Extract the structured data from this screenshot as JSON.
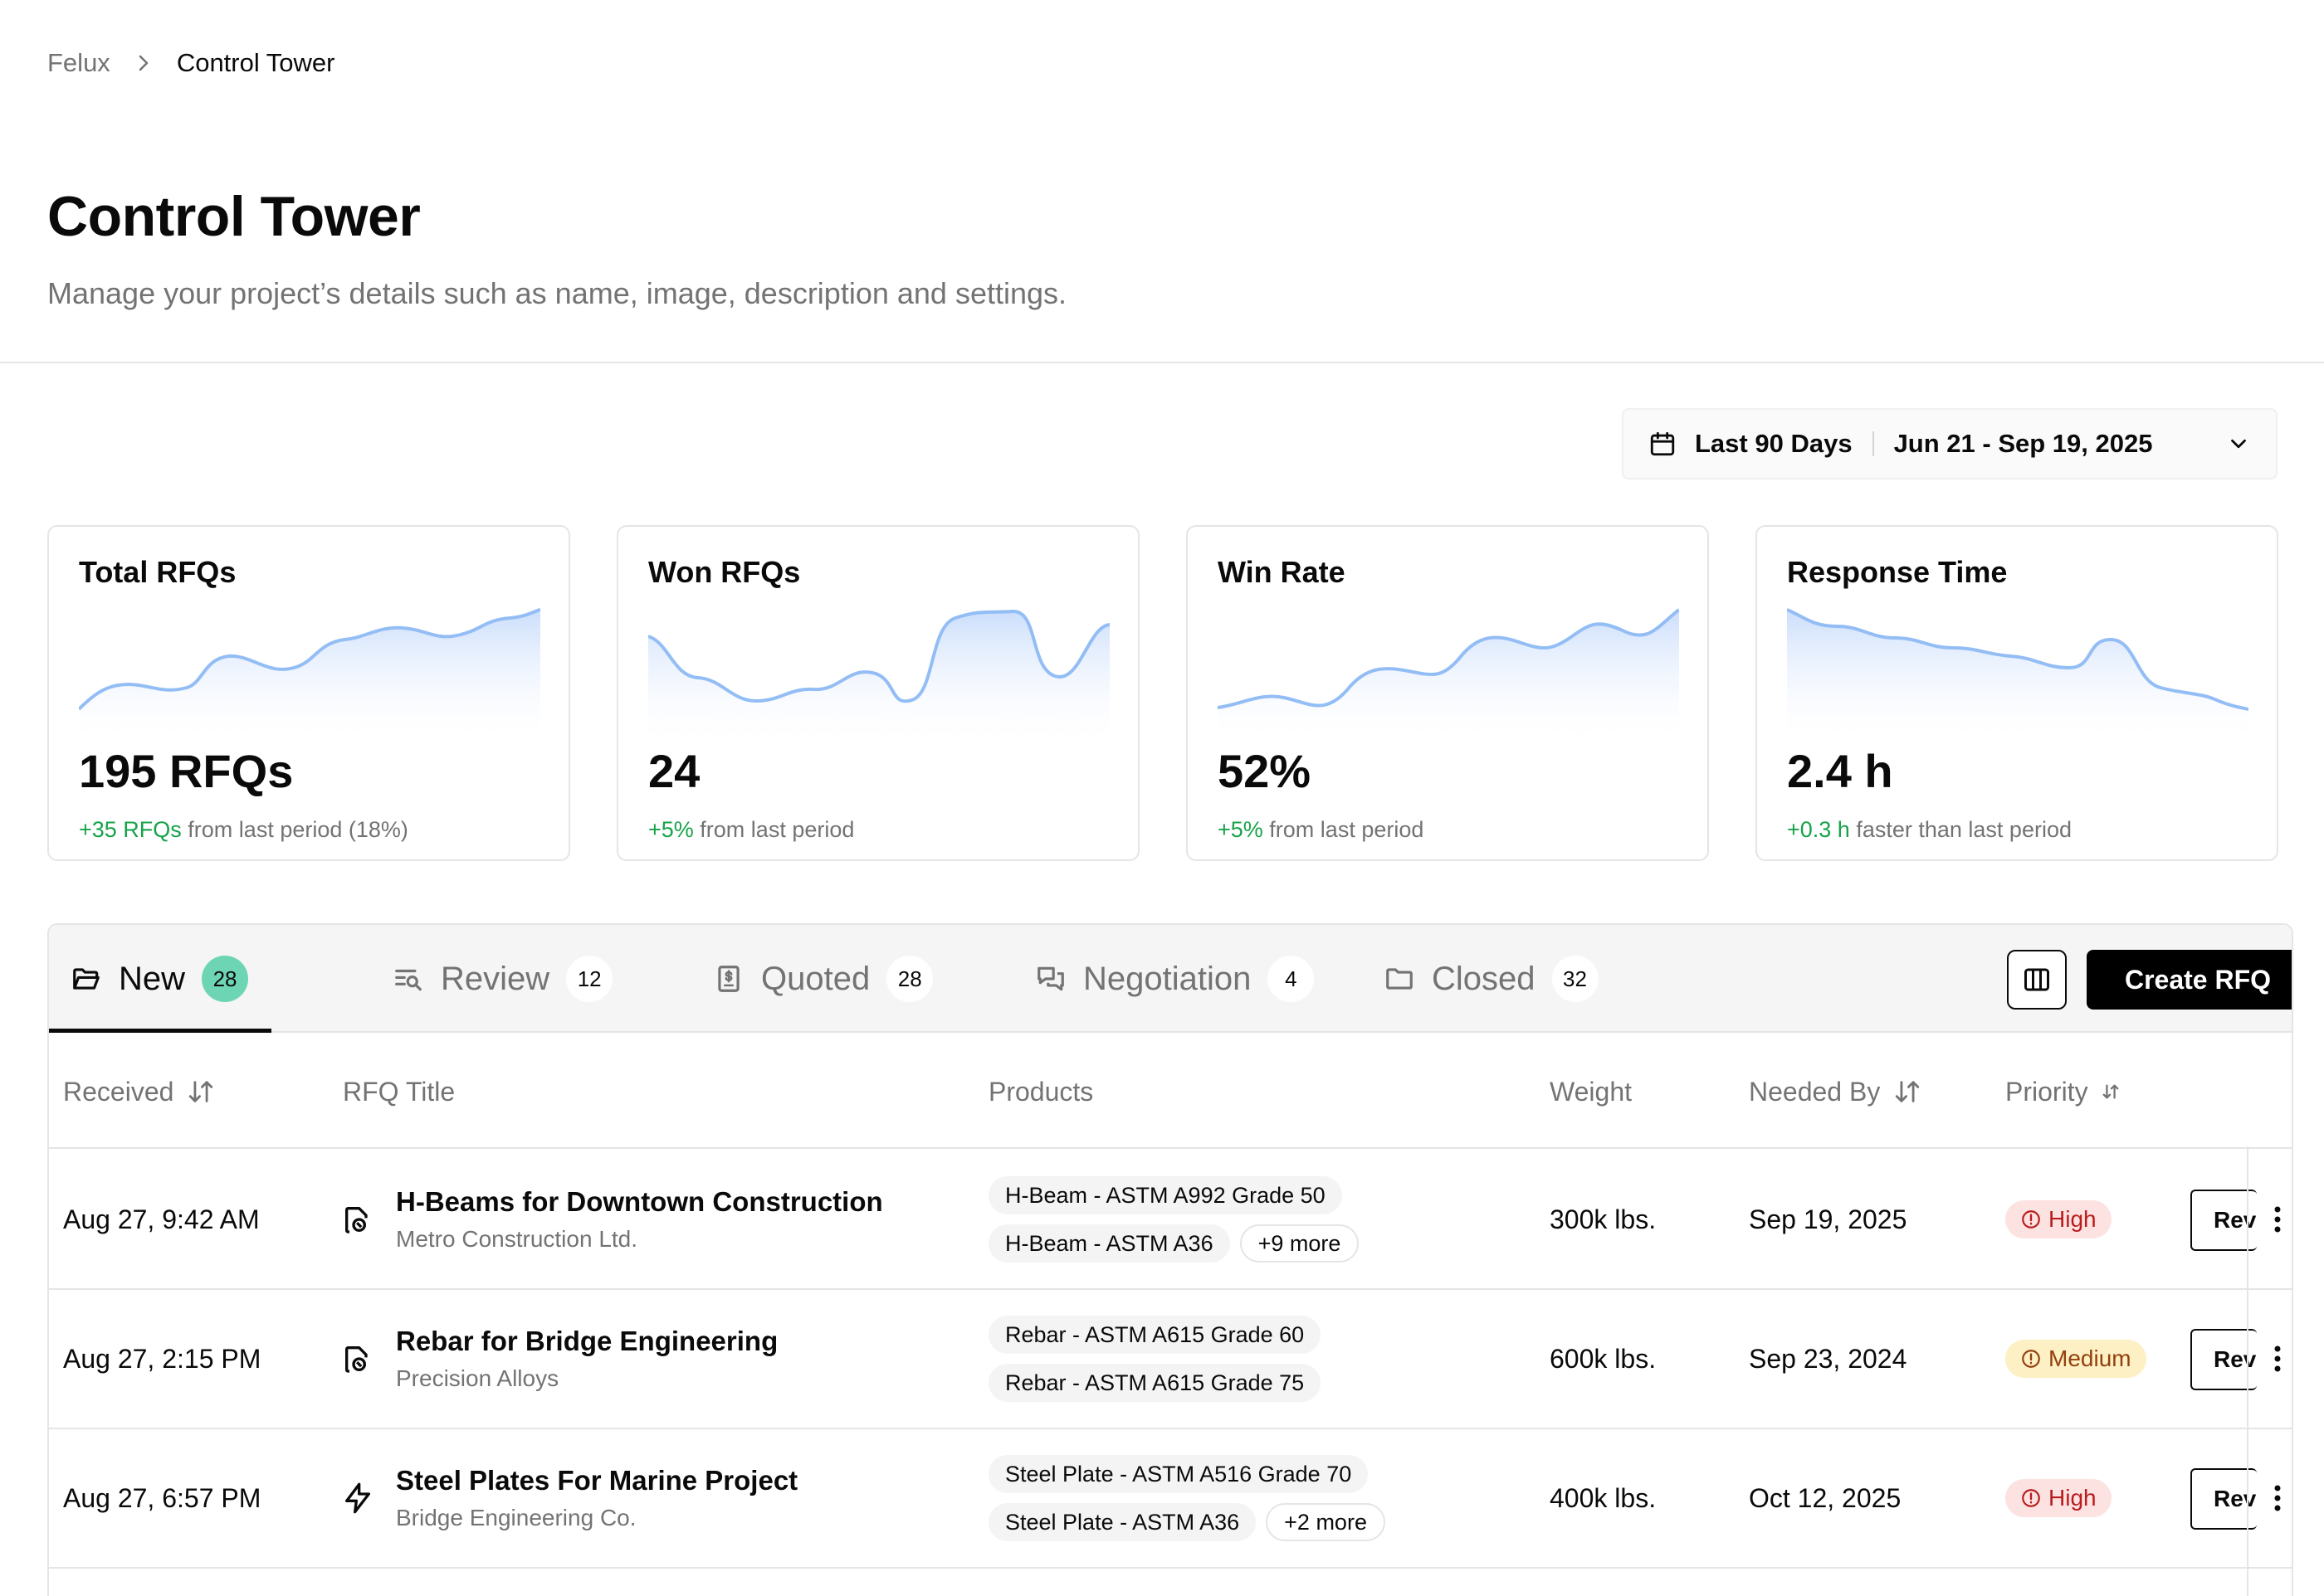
{
  "breadcrumb": {
    "root": "Felux",
    "current": "Control Tower"
  },
  "page": {
    "title": "Control Tower",
    "subtitle": "Manage your project’s details such as name, image, description and settings."
  },
  "date_range": {
    "preset": "Last 90 Days",
    "range": "Jun 21 - Sep 19, 2025"
  },
  "cards": [
    {
      "title": "Total RFQs",
      "value": "195 RFQs",
      "delta_highlight": "+35 RFQs",
      "delta_text": " from last period (18%)"
    },
    {
      "title": "Won RFQs",
      "value": "24",
      "delta_highlight": "+5%",
      "delta_text": " from last period"
    },
    {
      "title": "Win Rate",
      "value": "52%",
      "delta_highlight": "+5%",
      "delta_text": " from last period"
    },
    {
      "title": "Response Time",
      "value": "2.4 h",
      "delta_highlight": "+0.3 h",
      "delta_text": " faster than last period"
    }
  ],
  "tabs": [
    {
      "label": "New",
      "count": "28"
    },
    {
      "label": "Review",
      "count": "12"
    },
    {
      "label": "Quoted",
      "count": "28"
    },
    {
      "label": "Negotiation",
      "count": "4"
    },
    {
      "label": "Closed",
      "count": "32"
    }
  ],
  "toolbar": {
    "create_label": "Create RFQ"
  },
  "columns": {
    "received": "Received",
    "title": "RFQ Title",
    "products": "Products",
    "weight": "Weight",
    "needed_by": "Needed By",
    "priority": "Priority"
  },
  "rows": [
    {
      "received": "Aug 27, 9:42 AM",
      "title": "H-Beams for Downtown Construction",
      "company": "Metro Construction Ltd.",
      "product1": "H-Beam - ASTM A992 Grade 50",
      "product2": "H-Beam - ASTM A36",
      "more": "+9 more",
      "weight": "300k lbs.",
      "needed_by": "Sep 19, 2025",
      "priority": "High",
      "action": "Review"
    },
    {
      "received": "Aug 27, 2:15 PM",
      "title": "Rebar for Bridge Engineering",
      "company": "Precision Alloys",
      "product1": "Rebar - ASTM A615 Grade 60",
      "product2": "Rebar - ASTM A615 Grade 75",
      "more": "",
      "weight": "600k lbs.",
      "needed_by": "Sep 23, 2024",
      "priority": "Medium",
      "action": "Review"
    },
    {
      "received": "Aug 27, 6:57 PM",
      "title": "Steel Plates For Marine Project",
      "company": "Bridge Engineering Co.",
      "product1": "Steel Plate - ASTM A516 Grade 70",
      "product2": "Steel Plate - ASTM A36",
      "more": "+2 more",
      "weight": "400k lbs.",
      "needed_by": "Oct 12, 2025",
      "priority": "High",
      "action": "Review"
    }
  ],
  "colors": {
    "accent_badge": "#6ed5b4",
    "positive": "#16a34a",
    "spark_line": "#93bdf5"
  }
}
